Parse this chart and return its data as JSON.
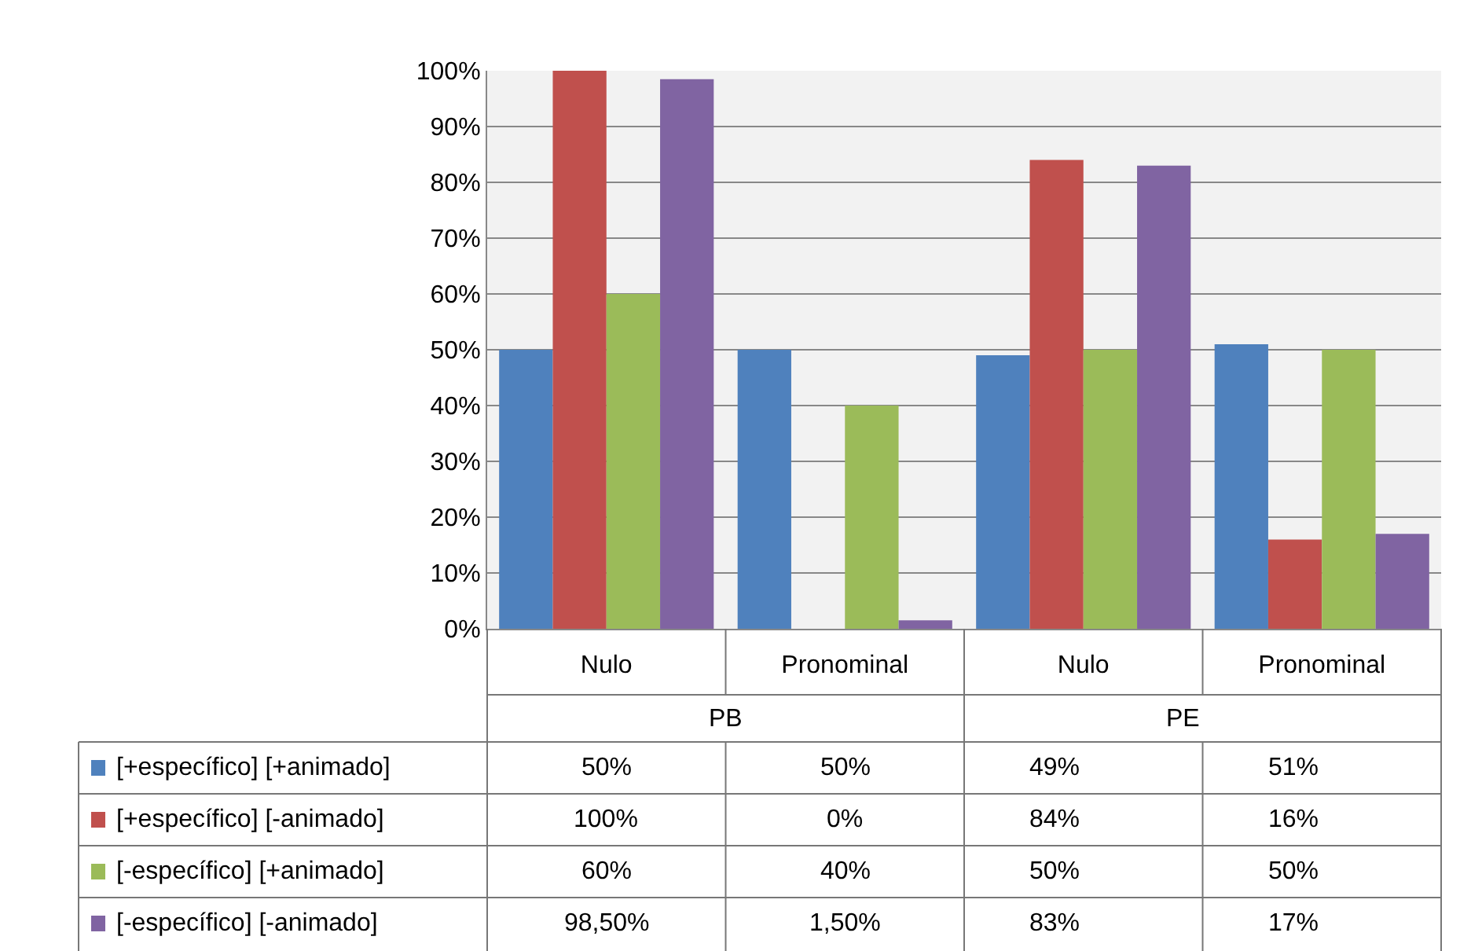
{
  "chart_data": {
    "type": "bar",
    "categories": [
      "Nulo",
      "Pronominal",
      "Nulo",
      "Pronominal"
    ],
    "annotations": [
      "PB",
      "PE"
    ],
    "series": [
      {
        "name": "[+específico] [+animado]",
        "color": "#4f81bd",
        "values": [
          50,
          50,
          49,
          51
        ],
        "value_labels": [
          "50%",
          "50%",
          "49%",
          "51%"
        ]
      },
      {
        "name": "[+específico] [-animado]",
        "color": "#c0504d",
        "values": [
          100,
          0,
          84,
          16
        ],
        "value_labels": [
          "100%",
          "0%",
          "84%",
          "16%"
        ]
      },
      {
        "name": "[-específico] [+animado]",
        "color": "#9bbb59",
        "values": [
          60,
          40,
          50,
          50
        ],
        "value_labels": [
          "60%",
          "40%",
          "50%",
          "50%"
        ]
      },
      {
        "name": "[-específico] [-animado]",
        "color": "#8064a2",
        "values": [
          98.5,
          1.5,
          83,
          17
        ],
        "value_labels": [
          "98,50%",
          "1,50%",
          "83%",
          "17%"
        ]
      }
    ],
    "ylim": [
      0,
      100
    ],
    "yticks": [
      {
        "value": 0,
        "label": "0%"
      },
      {
        "value": 10,
        "label": "10%"
      },
      {
        "value": 20,
        "label": "20%"
      },
      {
        "value": 30,
        "label": "30%"
      },
      {
        "value": 40,
        "label": "40%"
      },
      {
        "value": 50,
        "label": "50%"
      },
      {
        "value": 60,
        "label": "60%"
      },
      {
        "value": 70,
        "label": "70%"
      },
      {
        "value": 80,
        "label": "80%"
      },
      {
        "value": 90,
        "label": "90%"
      },
      {
        "value": 100,
        "label": "100%"
      }
    ],
    "grid": "y",
    "legend": "bottom left"
  }
}
